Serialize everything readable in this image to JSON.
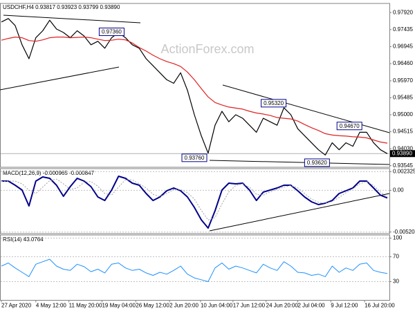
{
  "chart_data": [
    {
      "type": "line",
      "title": "USDCHF,H4  0.93817 0.93923 0.93799 0.93890",
      "watermark": "ActionForex.com",
      "xlim": [
        0,
        56
      ],
      "ylim": [
        0.935,
        0.9818
      ],
      "yticks": [
        {
          "value": 0.9792,
          "label": "0.97920"
        },
        {
          "value": 0.97435,
          "label": "0.97435"
        },
        {
          "value": 0.96945,
          "label": "0.96945"
        },
        {
          "value": 0.9646,
          "label": "0.96460"
        },
        {
          "value": 0.9597,
          "label": "0.95970"
        },
        {
          "value": 0.95485,
          "label": "0.95485"
        },
        {
          "value": 0.95,
          "label": "0.95000"
        },
        {
          "value": 0.94515,
          "label": "0.94515"
        },
        {
          "value": 0.9403,
          "label": "0.94030"
        },
        {
          "value": 0.93545,
          "label": "0.93545"
        }
      ],
      "last": {
        "value": 0.9389,
        "label": "0.93890"
      },
      "annotations": [
        {
          "x": 16,
          "value": 0.9736,
          "label": "0.97360"
        },
        {
          "x": 39.5,
          "value": 0.9532,
          "label": "0.95320"
        },
        {
          "x": 50.5,
          "value": 0.9467,
          "label": "0.94670"
        },
        {
          "x": 28,
          "value": 0.9376,
          "label": "0.93760"
        },
        {
          "x": 45.8,
          "value": 0.9362,
          "label": "0.93620"
        }
      ],
      "series": [
        {
          "color": "#000000",
          "width": 1.2,
          "values": [
            0.9765,
            0.9775,
            0.9755,
            0.97,
            0.966,
            0.972,
            0.974,
            0.977,
            0.9745,
            0.9735,
            0.972,
            0.974,
            0.9725,
            0.97,
            0.971,
            0.969,
            0.972,
            0.9735,
            0.972,
            0.97,
            0.969,
            0.966,
            0.964,
            0.962,
            0.96,
            0.959,
            0.962,
            0.957,
            0.95,
            0.944,
            0.939,
            0.947,
            0.951,
            0.948,
            0.95,
            0.949,
            0.947,
            0.945,
            0.949,
            0.948,
            0.947,
            0.952,
            0.95,
            0.946,
            0.944,
            0.942,
            0.94,
            0.9385,
            0.942,
            0.94,
            0.942,
            0.941,
            0.945,
            0.945,
            0.942,
            0.94,
            0.9389
          ]
        },
        {
          "color": "#e02020",
          "width": 1.2,
          "values": [
            0.9713,
            0.9718,
            0.9722,
            0.972,
            0.9712,
            0.971,
            0.9714,
            0.972,
            0.9722,
            0.9722,
            0.972,
            0.9721,
            0.9722,
            0.972,
            0.9716,
            0.9712,
            0.9713,
            0.9716,
            0.9714,
            0.9705,
            0.9692,
            0.9682,
            0.967,
            0.966,
            0.9652,
            0.9646,
            0.9638,
            0.9622,
            0.96,
            0.9575,
            0.9551,
            0.9535,
            0.9528,
            0.9522,
            0.9519,
            0.9516,
            0.951,
            0.9505,
            0.9502,
            0.9498,
            0.9492,
            0.949,
            0.9488,
            0.9482,
            0.9472,
            0.9463,
            0.9455,
            0.9446,
            0.9442,
            0.944,
            0.9439,
            0.9437,
            0.9436,
            0.9434,
            0.9428,
            0.9422,
            0.9419
          ]
        }
      ]
    },
    {
      "type": "line",
      "title": "MACD(12,26,9) -0.000965 -0.000847",
      "xlim": [
        0,
        56
      ],
      "ylim": [
        -0.0054,
        0.0027
      ],
      "yticks": [
        0.002325,
        {
          "value": 0,
          "label": "0.00"
        },
        -0.005201
      ],
      "series": [
        {
          "color": "#00008b",
          "width": 2,
          "values": [
            0.00115,
            0.00115,
            0.00063,
            3e-05,
            -0.00195,
            0.00115,
            0.00167,
            0.00149,
            0.00063,
            -0.00075,
            0.00046,
            0.00149,
            0.00115,
            0.00046,
            -0.00083,
            -0.00127,
            3e-05,
            0.00175,
            0.00149,
            0.00089,
            0.00063,
            -0.0004,
            -0.00127,
            -0.00083,
            -6e-05,
            0.00029,
            -6e-05,
            -0.00083,
            -0.00213,
            -0.00368,
            -0.00471,
            -0.00256,
            3e-05,
            0.00089,
            0.0008,
            0.00089,
            3e-05,
            -0.00127,
            -0.00023,
            3e-05,
            0.00029,
            0.00063,
            0.00063,
            -6e-05,
            -0.00083,
            -0.00144,
            -0.00178,
            -0.00161,
            -0.00127,
            -0.0004,
            -6e-05,
            0.00029,
            0.00115,
            0.00115,
            0.00029,
            -0.0006,
            -0.000965
          ]
        },
        {
          "color": "#a0a0a0",
          "width": 1,
          "dash": true,
          "values": [
            0.0011,
            0.00115,
            0.00115,
            0.0008,
            2e-05,
            -0.0004,
            0.0004,
            0.0012,
            0.0014,
            0.0008,
            0.0001,
            0.0003,
            0.001,
            0.0011,
            0.0005,
            -0.0004,
            -0.0006,
            0.0004,
            0.0013,
            0.0013,
            0.0008,
            0.0003,
            -0.0005,
            -0.0008,
            -0.0004,
            0.0001,
            0.0001,
            -0.0003,
            -0.0011,
            -0.0025,
            -0.0037,
            -0.0034,
            -0.0017,
            -0.0002,
            0.0006,
            0.0008,
            0.0004,
            -0.0005,
            -0.0006,
            -0.0002,
            0.0001,
            0.0004,
            0.0006,
            0.0003,
            -0.0004,
            -0.0011,
            -0.0015,
            -0.0016,
            -0.0014,
            -0.0009,
            -0.0003,
            0.0002,
            0.0008,
            0.0011,
            0.0006,
            -0.0002,
            -0.000847
          ]
        }
      ]
    },
    {
      "type": "line",
      "title": "RSI(14) 43.0764",
      "xlim": [
        0,
        56
      ],
      "ylim": [
        0,
        105
      ],
      "yticks": [
        100,
        70,
        30
      ],
      "xticks": [
        {
          "value": 0,
          "label": "27 Apr 2020"
        },
        {
          "value": 5,
          "label": "4 May 12:00"
        },
        {
          "value": 9.8,
          "label": "11 May 20:00"
        },
        {
          "value": 14.6,
          "label": "19 May 04:00"
        },
        {
          "value": 19.5,
          "label": "26 May 12:00"
        },
        {
          "value": 24.4,
          "label": "2 Jun 20:00"
        },
        {
          "value": 28.9,
          "label": "10 Jun 04:00"
        },
        {
          "value": 33.6,
          "label": "17 Jun 12:00"
        },
        {
          "value": 38.4,
          "label": "24 Jun 20:00"
        },
        {
          "value": 43,
          "label": "2 Jul 04:00"
        },
        {
          "value": 47.8,
          "label": "9 Jul 12:00"
        },
        {
          "value": 52.7,
          "label": "16 Jul 20:00"
        }
      ],
      "series": [
        {
          "color": "#1e90ff",
          "width": 1,
          "values": [
            55,
            60,
            52,
            45,
            38,
            58,
            62,
            66,
            55,
            50,
            48,
            58,
            54,
            46,
            50,
            44,
            58,
            60,
            52,
            48,
            50,
            44,
            40,
            45,
            42,
            48,
            55,
            42,
            36,
            33,
            30,
            52,
            60,
            50,
            55,
            52,
            48,
            44,
            58,
            52,
            48,
            62,
            55,
            45,
            44,
            40,
            42,
            38,
            55,
            45,
            52,
            48,
            58,
            60,
            48,
            45,
            43.0764
          ]
        }
      ]
    }
  ]
}
